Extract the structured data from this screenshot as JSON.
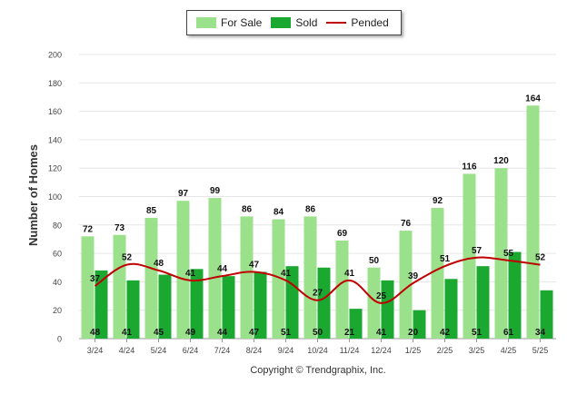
{
  "chart_data": {
    "type": "bar",
    "categories": [
      "3/24",
      "4/24",
      "5/24",
      "6/24",
      "7/24",
      "8/24",
      "9/24",
      "10/24",
      "11/24",
      "12/24",
      "1/25",
      "2/25",
      "3/25",
      "4/25",
      "5/25"
    ],
    "series": [
      {
        "name": "For Sale",
        "type": "bar",
        "color": "#9be08b",
        "values": [
          72,
          73,
          85,
          97,
          99,
          86,
          84,
          86,
          69,
          50,
          76,
          92,
          116,
          120,
          164
        ]
      },
      {
        "name": "Sold",
        "type": "bar",
        "color": "#1aa830",
        "values": [
          48,
          41,
          45,
          49,
          44,
          47,
          51,
          50,
          21,
          41,
          20,
          42,
          51,
          61,
          34
        ]
      },
      {
        "name": "Pended",
        "type": "line",
        "color": "#c00000",
        "values": [
          37,
          52,
          48,
          41,
          44,
          47,
          41,
          27,
          41,
          25,
          39,
          51,
          57,
          55,
          52
        ]
      }
    ],
    "xlabel": "",
    "ylabel": "Number of Homes",
    "ylim": [
      0,
      200
    ],
    "yticks": [
      0,
      20,
      40,
      60,
      80,
      100,
      120,
      140,
      160,
      180,
      200
    ],
    "grid": true,
    "legend": "top-center"
  },
  "footer": {
    "copyright": "Copyright © Trendgraphix, Inc."
  }
}
